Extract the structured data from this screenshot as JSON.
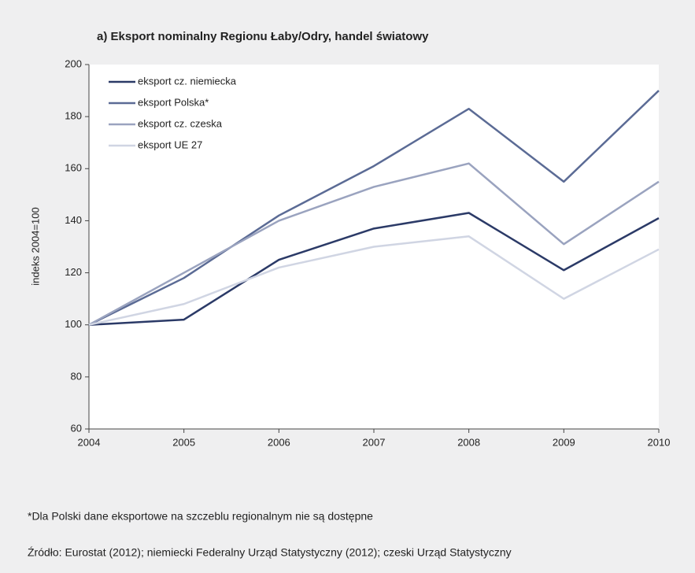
{
  "chart_data": {
    "type": "line",
    "title": "a) Eksport nominalny Regionu Łaby/Odry, handel światowy",
    "y_label": "indeks 2004=100",
    "categories": [
      "2004",
      "2005",
      "2006",
      "2007",
      "2008",
      "2009",
      "2010"
    ],
    "series": [
      {
        "name": "eksport cz. niemiecka",
        "color": "#2b3a67",
        "values": [
          100,
          102,
          125,
          137,
          143,
          121,
          141
        ]
      },
      {
        "name": "eksport Polska*",
        "color": "#5b6b95",
        "values": [
          100,
          118,
          142,
          161,
          183,
          155,
          190
        ]
      },
      {
        "name": "eksport cz. czeska",
        "color": "#9aa3bf",
        "values": [
          100,
          120,
          140,
          153,
          162,
          131,
          155
        ]
      },
      {
        "name": "eksport UE 27",
        "color": "#d0d5e3",
        "values": [
          100,
          108,
          122,
          130,
          134,
          110,
          129
        ]
      }
    ],
    "ylim": [
      60,
      200
    ],
    "yticks": [
      60,
      80,
      100,
      120,
      140,
      160,
      180,
      200
    ],
    "grid": false,
    "legend": "upper left",
    "notes": [
      "*Dla Polski dane eksportowe na szczeblu regionalnym nie są dostępne",
      "Źródło: Eurostat (2012); niemiecki Federalny Urząd Statystyczny (2012);  czeski Urząd Statystyczny"
    ]
  }
}
